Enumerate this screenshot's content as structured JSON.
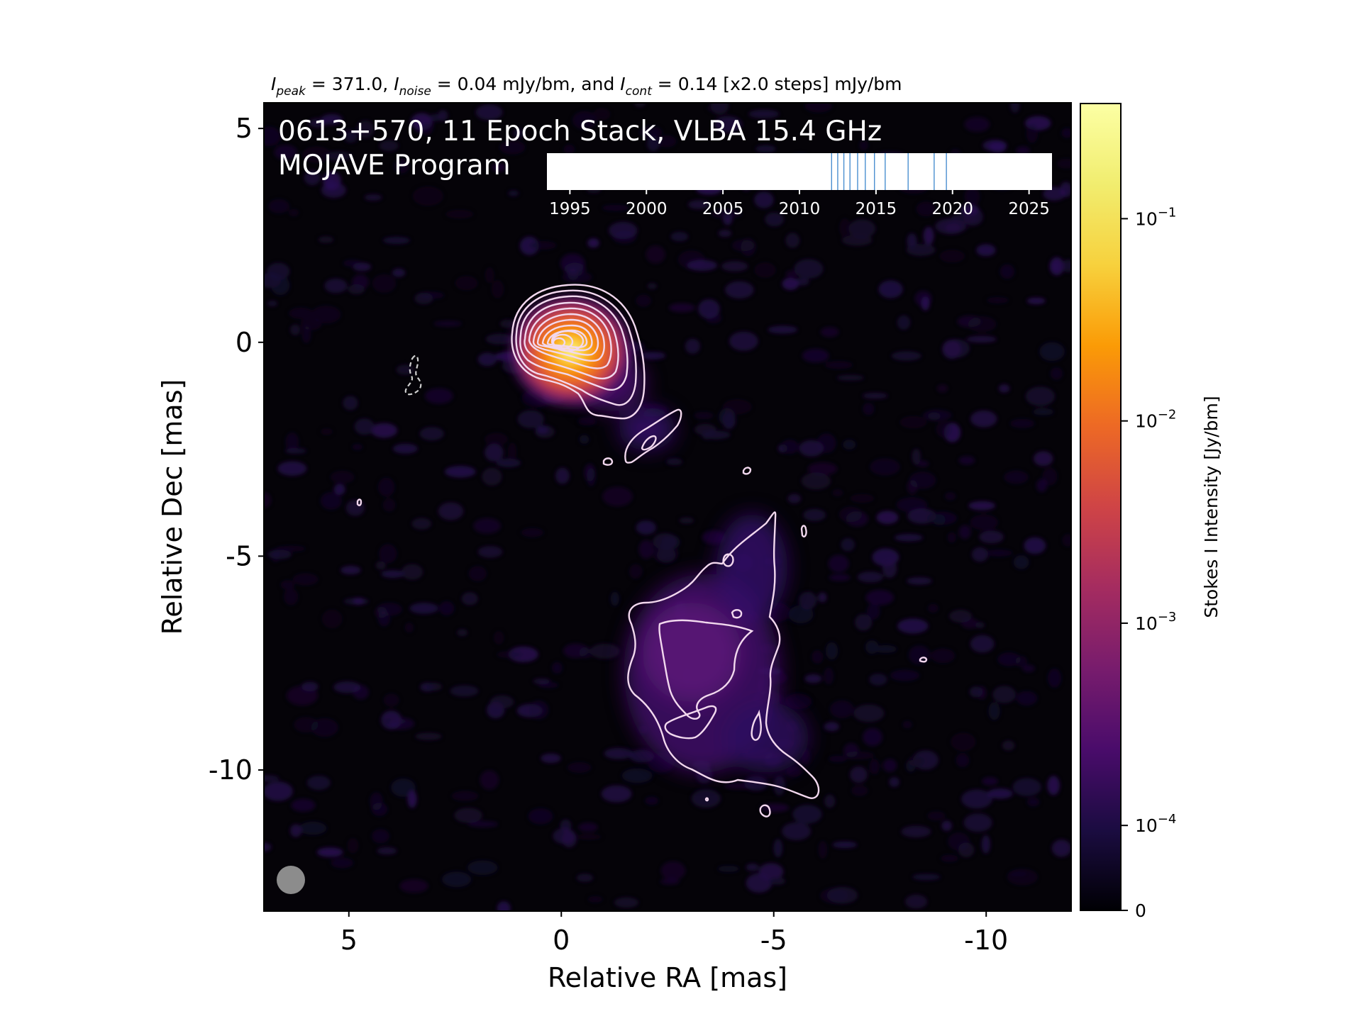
{
  "chart_data": {
    "type": "heatmap",
    "subtitle": {
      "i1": "I",
      "s1": "peak",
      "t1": " = 371.0, ",
      "i2": "I",
      "s2": "noise",
      "t2": " = 0.04 mJy/bm, and ",
      "i3": "I",
      "s3": "cont",
      "t3": " = 0.14 [x2.0 steps] mJy/bm"
    },
    "title_line1": "0613+570, 11 Epoch Stack, VLBA 15.4 GHz",
    "title_line2": "MOJAVE Program",
    "xlabel": "Relative RA [mas]",
    "ylabel": "Relative Dec [mas]",
    "xlim": [
      7,
      -12
    ],
    "ylim": [
      -13.3,
      5.6
    ],
    "x_ticks": [
      {
        "value": 5,
        "label": "5"
      },
      {
        "value": 0,
        "label": "0"
      },
      {
        "value": -5,
        "label": "-5"
      },
      {
        "value": -10,
        "label": "-10"
      }
    ],
    "y_ticks": [
      {
        "value": 5,
        "label": "5"
      },
      {
        "value": 0,
        "label": "0"
      },
      {
        "value": -5,
        "label": "-5"
      },
      {
        "value": -10,
        "label": "-10"
      }
    ],
    "colorbar": {
      "label": "Stokes I Intensity [Jy/bm]",
      "scale": "log",
      "colormap": "inferno",
      "range_jy": [
        0,
        0.371
      ],
      "ticks": [
        {
          "value": 0.1,
          "base": "10",
          "exp": "−1"
        },
        {
          "value": 0.01,
          "base": "10",
          "exp": "−2"
        },
        {
          "value": 0.001,
          "base": "10",
          "exp": "−3"
        },
        {
          "value": 0.0001,
          "base": "10",
          "exp": "−4"
        },
        {
          "value": 0,
          "base": "0",
          "exp": ""
        }
      ]
    },
    "epoch_timeline": {
      "xlim": [
        1993.5,
        2026.5
      ],
      "ticks": [
        "1995",
        "2000",
        "2005",
        "2010",
        "2015",
        "2020",
        "2025"
      ],
      "tick_values": [
        1995,
        2000,
        2005,
        2010,
        2015,
        2020,
        2025
      ],
      "epochs": [
        2012.1,
        2012.5,
        2012.9,
        2013.3,
        2013.8,
        2014.3,
        2014.9,
        2015.6,
        2017.1,
        2018.8,
        2019.6
      ]
    },
    "core_peak_position_mas": [
      0,
      0
    ],
    "peak_jy_per_beam": 0.371,
    "contour_base_mjy": 0.14,
    "contour_step": 2.0,
    "beam": "circular, lower-left"
  }
}
